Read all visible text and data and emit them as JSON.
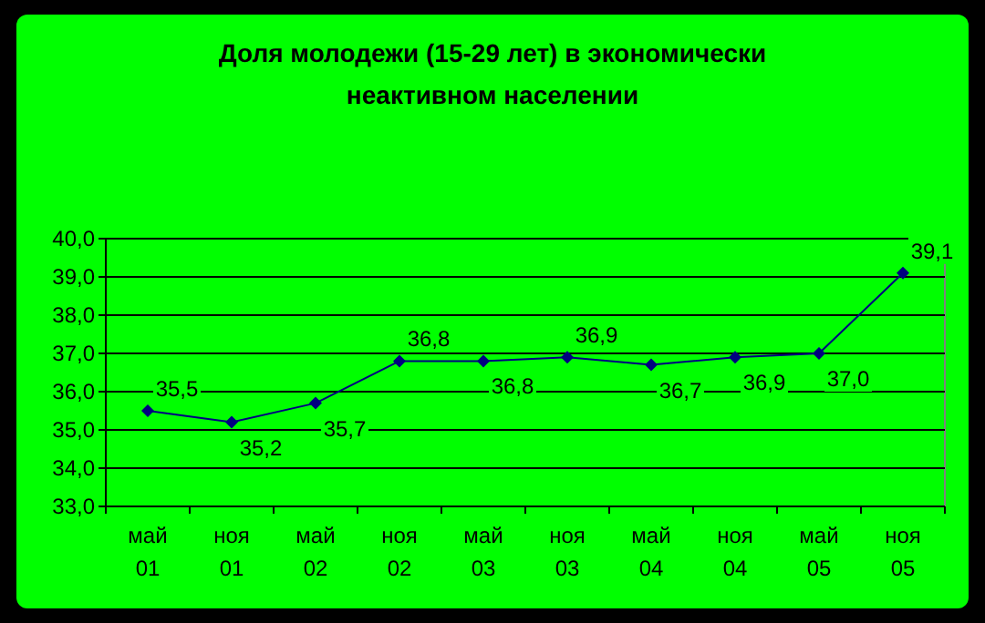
{
  "chart_data": {
    "type": "line",
    "title": "Доля молодежи (15-29 лет) в экономически неактивном населении",
    "categories": [
      "май 01",
      "ноя 01",
      "май 02",
      "ноя 02",
      "май 03",
      "ноя 03",
      "май 04",
      "ноя 04",
      "май 05",
      "ноя 05"
    ],
    "series": [
      {
        "color": "#000080",
        "values": [
          35.5,
          35.2,
          35.7,
          36.8,
          36.8,
          36.9,
          36.7,
          36.9,
          37.0,
          39.1
        ],
        "value_labels": [
          "35,5",
          "35,2",
          "35,7",
          "36,8",
          "36,8",
          "36,9",
          "36,7",
          "36,9",
          "37,0",
          "39,1"
        ]
      }
    ],
    "ylim": [
      33,
      40
    ],
    "yticks": [
      {
        "value": 33,
        "label": "33,0"
      },
      {
        "value": 34,
        "label": "34,0"
      },
      {
        "value": 35,
        "label": "35,0"
      },
      {
        "value": 36,
        "label": "36,0"
      },
      {
        "value": 37,
        "label": "37,0"
      },
      {
        "value": 38,
        "label": "38,0"
      },
      {
        "value": 39,
        "label": "39,0"
      },
      {
        "value": 40,
        "label": "40,0"
      }
    ],
    "grid": "y",
    "marker": "diamond",
    "line_style": "solid"
  }
}
